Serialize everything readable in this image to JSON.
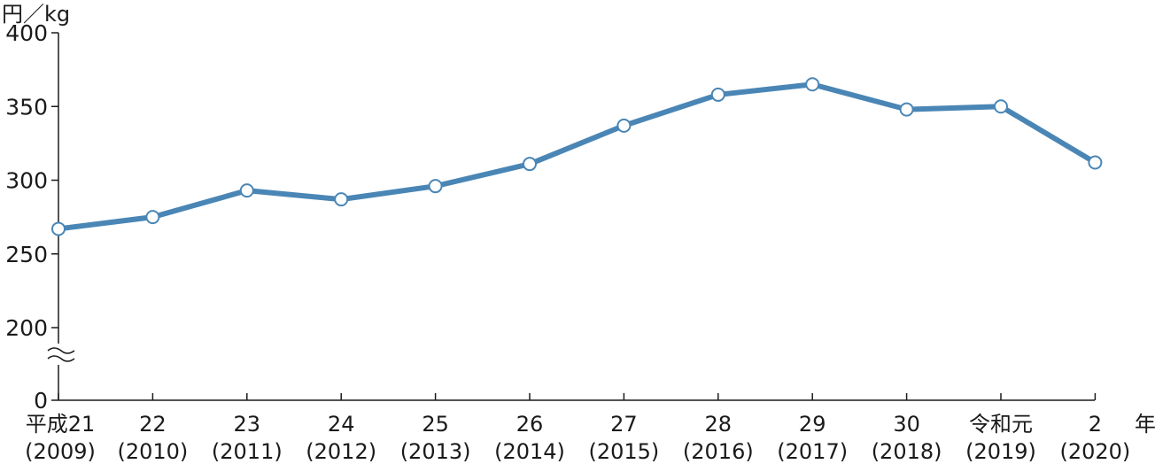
{
  "chart_data": {
    "type": "line",
    "y_unit_label": "円／kg",
    "x_unit_label": "年",
    "x_labels_top": [
      "平成21",
      "22",
      "23",
      "24",
      "25",
      "26",
      "27",
      "28",
      "29",
      "30",
      "令和元",
      "2"
    ],
    "x_labels_bottom": [
      "(2009)",
      "(2010)",
      "(2011)",
      "(2012)",
      "(2013)",
      "(2014)",
      "(2015)",
      "(2016)",
      "(2017)",
      "(2018)",
      "(2019)",
      "(2020)"
    ],
    "values": [
      267,
      275,
      293,
      287,
      296,
      311,
      337,
      358,
      365,
      348,
      350,
      312
    ],
    "y_ticks": [
      400,
      350,
      300,
      250,
      200,
      0
    ],
    "ylim": [
      200,
      400
    ],
    "y_axis_break": true,
    "legend": "none",
    "grid": false,
    "series_color": "#4a86b5",
    "marker_fill": "#ffffff"
  }
}
